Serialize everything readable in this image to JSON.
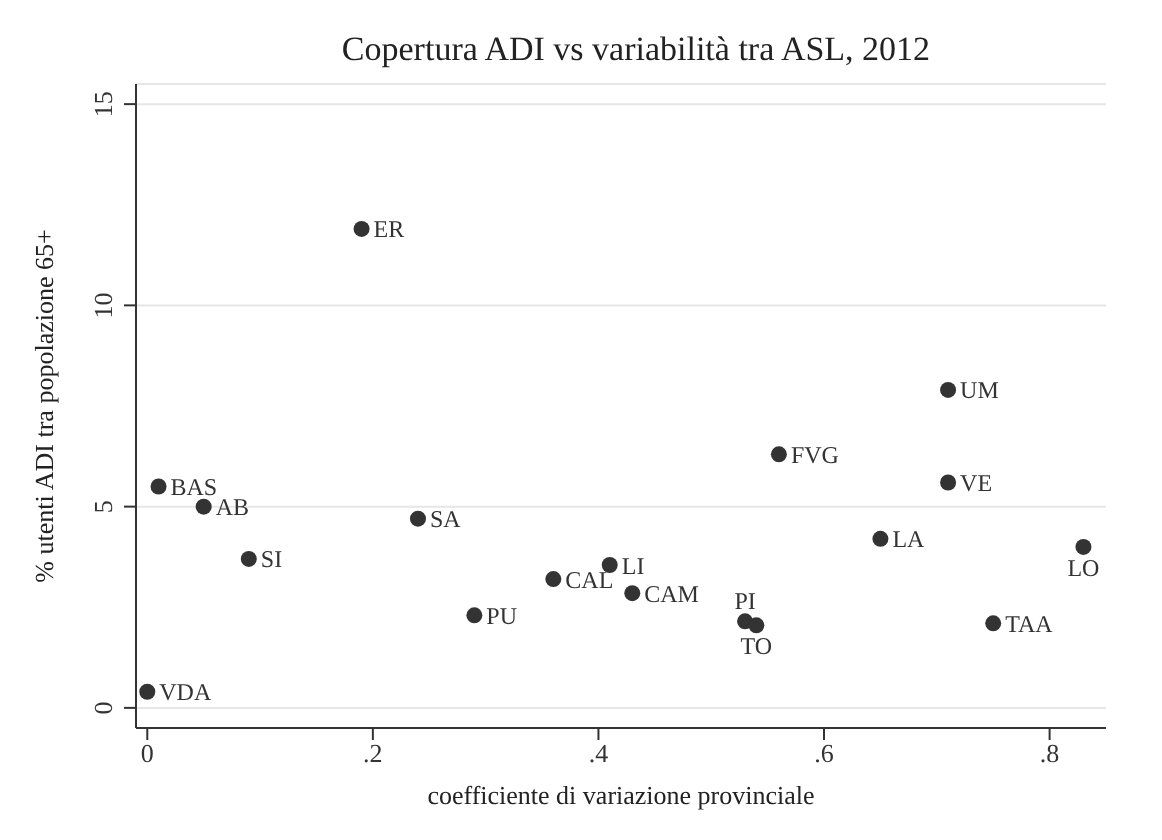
{
  "chart_data": {
    "type": "scatter",
    "title": "Copertura ADI vs variabilità tra ASL, 2012",
    "xlabel": "coefficiente di variazione provinciale",
    "ylabel": "% utenti ADI tra popolazione 65+",
    "x": [
      0,
      0.01,
      0.05,
      0.09,
      0.19,
      0.24,
      0.29,
      0.36,
      0.41,
      0.43,
      0.53,
      0.54,
      0.56,
      0.65,
      0.71,
      0.71,
      0.75,
      0.83
    ],
    "series": [
      {
        "color": "#333333",
        "values": [
          0.4,
          5.5,
          5.0,
          3.7,
          11.9,
          4.7,
          2.3,
          3.2,
          3.55,
          2.85,
          2.15,
          2.05,
          6.3,
          4.2,
          7.9,
          5.6,
          2.1,
          4.0
        ]
      }
    ],
    "annotations": [
      {
        "text": "VDA",
        "x": 0,
        "y": 0.4
      },
      {
        "text": "BAS",
        "x": 0.01,
        "y": 5.5
      },
      {
        "text": "AB",
        "x": 0.05,
        "y": 5.0
      },
      {
        "text": "SI",
        "x": 0.09,
        "y": 3.7
      },
      {
        "text": "ER",
        "x": 0.19,
        "y": 11.9
      },
      {
        "text": "SA",
        "x": 0.24,
        "y": 4.7
      },
      {
        "text": "PU",
        "x": 0.29,
        "y": 2.3
      },
      {
        "text": "CAL",
        "x": 0.36,
        "y": 3.2
      },
      {
        "text": "LI",
        "x": 0.41,
        "y": 3.55
      },
      {
        "text": "CAM",
        "x": 0.43,
        "y": 2.85
      },
      {
        "text": "PI",
        "x": 0.53,
        "y": 2.15
      },
      {
        "text": "TO",
        "x": 0.54,
        "y": 2.05
      },
      {
        "text": "FVG",
        "x": 0.56,
        "y": 6.3
      },
      {
        "text": "LA",
        "x": 0.65,
        "y": 4.2
      },
      {
        "text": "UM",
        "x": 0.71,
        "y": 7.9
      },
      {
        "text": "VE",
        "x": 0.71,
        "y": 5.6
      },
      {
        "text": "TAA",
        "x": 0.75,
        "y": 2.1
      },
      {
        "text": "LO",
        "x": 0.83,
        "y": 4.0
      }
    ],
    "xlim": [
      -0.01,
      0.85
    ],
    "xticks": [
      0,
      {
        "value": 0.2,
        "label": ".2"
      },
      {
        "value": 0.4,
        "label": ".4"
      },
      {
        "value": 0.6,
        "label": ".6"
      },
      {
        "value": 0.8,
        "label": ".8"
      }
    ],
    "ylim": [
      -0.5,
      15.5
    ],
    "yticks": [
      0,
      5,
      10,
      15
    ],
    "grid": "y",
    "marker": "circle"
  }
}
